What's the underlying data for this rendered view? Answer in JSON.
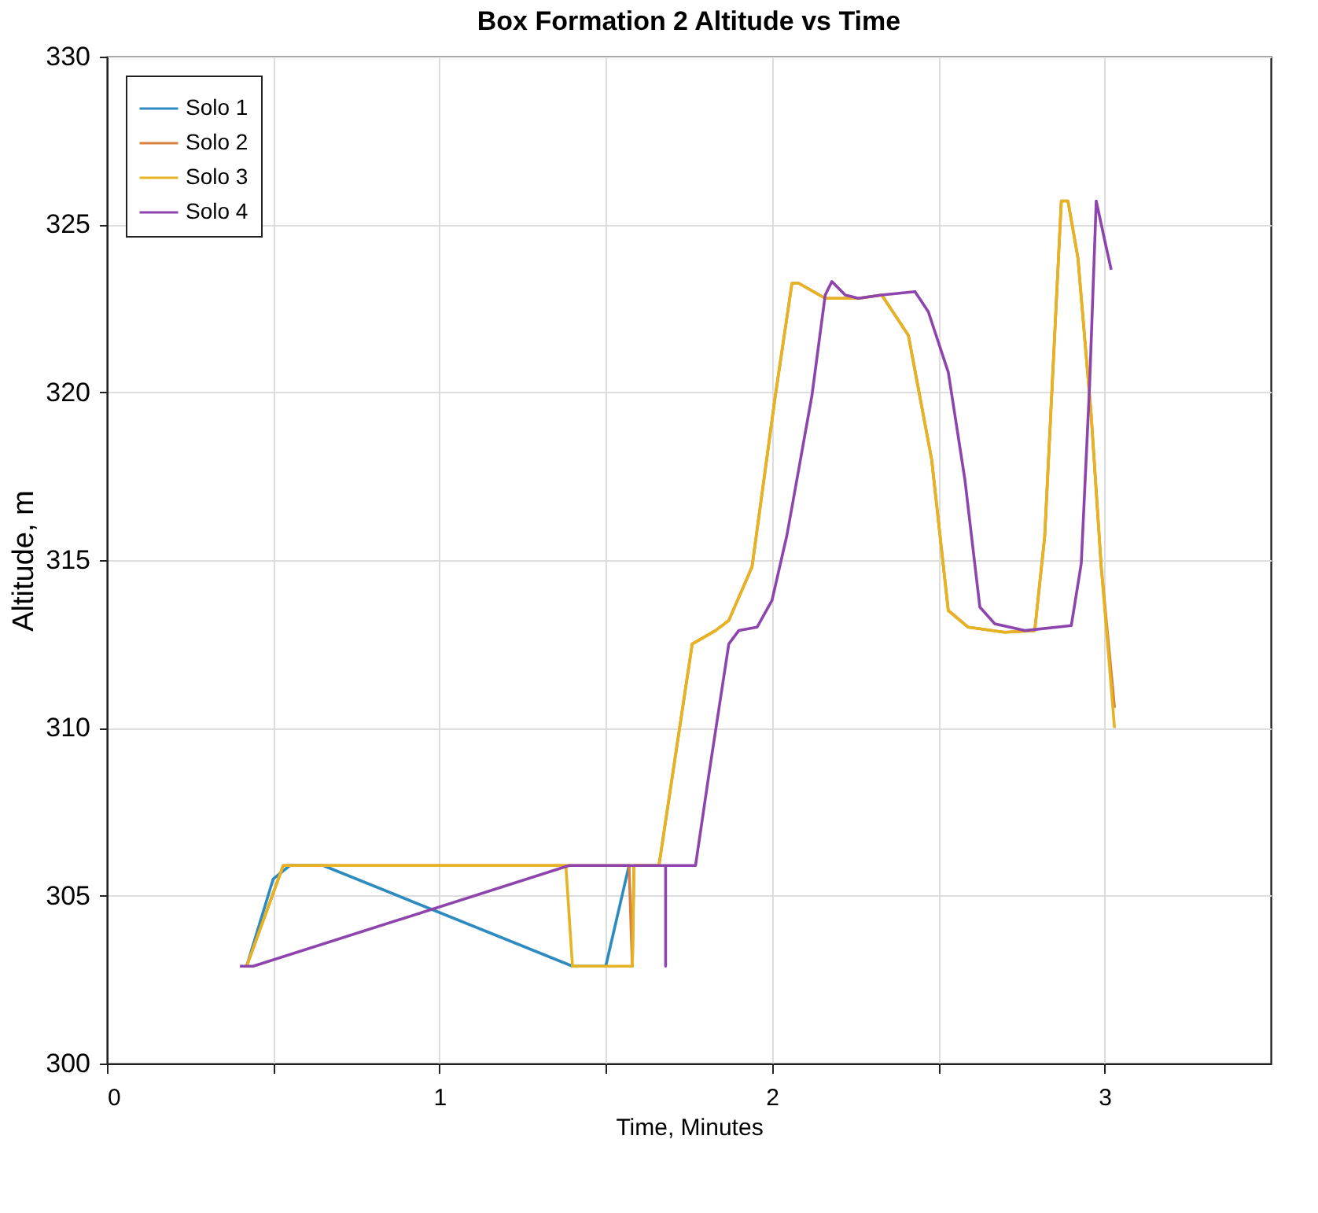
{
  "chart_data": {
    "type": "line",
    "title": "Box Formation 2 Altitude vs Time",
    "xlabel": "Time, Minutes",
    "ylabel": "Altitude, m",
    "xlim": [
      0,
      3.5
    ],
    "xticks": [
      0,
      {
        "value": 0.5,
        "label": null
      },
      1,
      {
        "value": 1.5,
        "label": null
      },
      2,
      {
        "value": 2.5,
        "label": null
      },
      3
    ],
    "ylim": [
      300,
      330
    ],
    "yticks": [
      300,
      305,
      310,
      315,
      320,
      325,
      330
    ],
    "grid": true,
    "legend": "top left",
    "line_style": "solid",
    "marker": "none",
    "series": [
      {
        "name": "Solo 1",
        "color": "#2e8bc0",
        "x": [
          0.42,
          0.5,
          0.55,
          0.65,
          1.4,
          1.5,
          1.57
        ],
        "values": [
          302.9,
          305.5,
          305.9,
          305.9,
          302.9,
          302.9,
          305.9
        ]
      },
      {
        "name": "Solo 2",
        "color": "#d9823b",
        "x": [
          0.42,
          0.53,
          1.57,
          1.58,
          1.585,
          1.66,
          1.76,
          1.83,
          1.87,
          1.94,
          2.01,
          2.06,
          2.08,
          2.16,
          2.26,
          2.33,
          2.41,
          2.48,
          2.53,
          2.59,
          2.7,
          2.79,
          2.82,
          2.87,
          2.89,
          2.92,
          2.96,
          2.99,
          3.03
        ],
        "values": [
          302.9,
          305.9,
          305.9,
          302.9,
          305.9,
          305.9,
          312.5,
          312.9,
          313.2,
          314.8,
          319.9,
          323.25,
          323.25,
          322.8,
          322.8,
          322.9,
          321.7,
          318.0,
          313.5,
          313.0,
          312.85,
          312.9,
          315.7,
          325.7,
          325.7,
          324.0,
          319.3,
          314.8,
          310.6
        ]
      },
      {
        "name": "Solo 3",
        "color": "#e6b422",
        "x": [
          0.42,
          0.53,
          1.38,
          1.4,
          1.58,
          1.585,
          1.66,
          1.76,
          1.83,
          1.87,
          1.94,
          2.01,
          2.06,
          2.08,
          2.16,
          2.26,
          2.33,
          2.41,
          2.48,
          2.53,
          2.59,
          2.7,
          2.79,
          2.82,
          2.87,
          2.89,
          2.92,
          2.96,
          2.99,
          3.03
        ],
        "values": [
          302.9,
          305.9,
          305.9,
          302.9,
          302.9,
          305.9,
          305.9,
          312.5,
          312.9,
          313.2,
          314.8,
          319.9,
          323.25,
          323.25,
          322.8,
          322.8,
          322.9,
          321.7,
          318.0,
          313.5,
          313.0,
          312.85,
          312.9,
          315.7,
          325.7,
          325.7,
          324.0,
          319.3,
          314.8,
          310.0
        ]
      },
      {
        "name": "Solo 4",
        "color": "#8e44ad",
        "x": [
          0.4,
          0.44,
          1.39,
          1.68,
          1.68,
          1.68,
          1.77,
          1.81,
          1.87,
          1.9,
          1.955,
          2.0,
          2.045,
          2.12,
          2.16,
          2.18,
          2.22,
          2.26,
          2.33,
          2.43,
          2.47,
          2.53,
          2.58,
          2.625,
          2.67,
          2.76,
          2.9,
          2.93,
          2.955,
          2.975,
          3.0,
          3.02
        ],
        "values": [
          302.9,
          302.9,
          305.9,
          305.9,
          302.9,
          305.9,
          305.9,
          308.6,
          312.5,
          312.9,
          313.0,
          313.8,
          315.75,
          319.9,
          322.9,
          323.3,
          322.9,
          322.8,
          322.9,
          323.0,
          322.4,
          320.6,
          317.4,
          313.6,
          313.1,
          312.9,
          313.05,
          314.9,
          320.2,
          325.7,
          324.55,
          323.65
        ]
      }
    ]
  }
}
